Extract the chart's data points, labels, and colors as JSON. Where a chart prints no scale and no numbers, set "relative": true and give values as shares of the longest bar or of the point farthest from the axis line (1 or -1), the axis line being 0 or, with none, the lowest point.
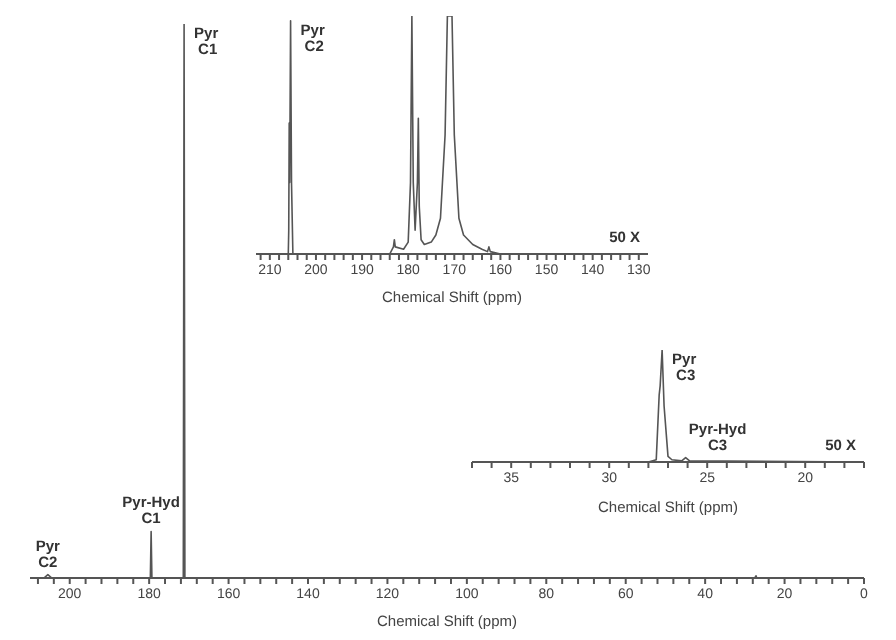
{
  "chart_data": [
    {
      "type": "line",
      "relative": true,
      "xlabel": "Chemical Shift (ppm)",
      "xlim": [
        210,
        0
      ],
      "tick_labels": "x",
      "xticks": [
        {
          "value": 208,
          "label": null
        },
        {
          "value": 204,
          "label": null
        },
        200,
        {
          "value": 196,
          "label": null
        },
        {
          "value": 192,
          "label": null
        },
        {
          "value": 188,
          "label": null
        },
        {
          "value": 184,
          "label": null
        },
        180,
        {
          "value": 176,
          "label": null
        },
        {
          "value": 172,
          "label": null
        },
        {
          "value": 168,
          "label": null
        },
        {
          "value": 164,
          "label": null
        },
        160,
        {
          "value": 156,
          "label": null
        },
        {
          "value": 152,
          "label": null
        },
        {
          "value": 148,
          "label": null
        },
        {
          "value": 144,
          "label": null
        },
        140,
        {
          "value": 136,
          "label": null
        },
        {
          "value": 132,
          "label": null
        },
        {
          "value": 128,
          "label": null
        },
        {
          "value": 124,
          "label": null
        },
        120,
        {
          "value": 116,
          "label": null
        },
        {
          "value": 112,
          "label": null
        },
        {
          "value": 108,
          "label": null
        },
        {
          "value": 104,
          "label": null
        },
        100,
        {
          "value": 96,
          "label": null
        },
        {
          "value": 92,
          "label": null
        },
        {
          "value": 88,
          "label": null
        },
        {
          "value": 84,
          "label": null
        },
        80,
        {
          "value": 76,
          "label": null
        },
        {
          "value": 72,
          "label": null
        },
        {
          "value": 68,
          "label": null
        },
        {
          "value": 64,
          "label": null
        },
        60,
        {
          "value": 56,
          "label": null
        },
        {
          "value": 52,
          "label": null
        },
        {
          "value": 48,
          "label": null
        },
        {
          "value": 44,
          "label": null
        },
        40,
        {
          "value": 36,
          "label": null
        },
        {
          "value": 32,
          "label": null
        },
        {
          "value": 28,
          "label": null
        },
        {
          "value": 24,
          "label": null
        },
        20,
        {
          "value": 16,
          "label": null
        },
        {
          "value": 12,
          "label": null
        },
        {
          "value": 8,
          "label": null
        },
        {
          "value": 4,
          "label": null
        },
        0
      ],
      "x": [
        210,
        207,
        206.5,
        205.5,
        204.5,
        180,
        179.7,
        179.5,
        179.3,
        172,
        171.4,
        171.2,
        171,
        170.6,
        163,
        27.5,
        27.2,
        27,
        0
      ],
      "values": [
        0,
        0,
        0,
        0.006,
        0,
        0,
        0,
        0.084,
        0,
        0,
        0,
        1,
        0,
        0,
        0,
        0,
        0.004,
        0,
        0
      ],
      "color": "#555555",
      "annotations": [
        {
          "text": "Pyr C1",
          "x": 171.2,
          "y": 1
        },
        {
          "text": "Pyr-Hyd C1",
          "x": 179.5,
          "y": 0.084
        },
        {
          "text": "Pyr C2",
          "x": 205.5,
          "y": 0.006
        }
      ]
    },
    {
      "type": "line",
      "relative": true,
      "xlabel": "Chemical Shift (ppm)",
      "xlim": [
        213,
        128
      ],
      "tick_labels": "x",
      "xticks": [
        {
          "value": 212,
          "label": null
        },
        210,
        {
          "value": 208,
          "label": null
        },
        {
          "value": 206,
          "label": null
        },
        {
          "value": 204,
          "label": null
        },
        {
          "value": 202,
          "label": null
        },
        200,
        {
          "value": 198,
          "label": null
        },
        {
          "value": 196,
          "label": null
        },
        {
          "value": 194,
          "label": null
        },
        {
          "value": 192,
          "label": null
        },
        190,
        {
          "value": 188,
          "label": null
        },
        {
          "value": 186,
          "label": null
        },
        {
          "value": 184,
          "label": null
        },
        {
          "value": 182,
          "label": null
        },
        180,
        {
          "value": 178,
          "label": null
        },
        {
          "value": 176,
          "label": null
        },
        {
          "value": 174,
          "label": null
        },
        {
          "value": 172,
          "label": null
        },
        170,
        {
          "value": 168,
          "label": null
        },
        {
          "value": 166,
          "label": null
        },
        {
          "value": 164,
          "label": null
        },
        {
          "value": 162,
          "label": null
        },
        160,
        {
          "value": 158,
          "label": null
        },
        {
          "value": 156,
          "label": null
        },
        {
          "value": 154,
          "label": null
        },
        {
          "value": 152,
          "label": null
        },
        150,
        {
          "value": 148,
          "label": null
        },
        {
          "value": 146,
          "label": null
        },
        {
          "value": 144,
          "label": null
        },
        {
          "value": 142,
          "label": null
        },
        140,
        {
          "value": 138,
          "label": null
        },
        {
          "value": 136,
          "label": null
        },
        {
          "value": 134,
          "label": null
        },
        {
          "value": 132,
          "label": null
        },
        130
      ],
      "x": [
        213,
        207,
        206,
        205.9,
        205.8,
        205.7,
        205.5,
        205.3,
        205,
        184,
        183.2,
        183,
        182.8,
        181,
        180,
        179.5,
        179.2,
        178.9,
        178.5,
        178,
        177.8,
        177.6,
        177.2,
        176.5,
        175,
        174,
        173,
        172,
        171.5,
        171,
        170.5,
        170,
        169,
        168,
        166,
        164,
        162.8,
        162.5,
        162.2,
        160,
        128
      ],
      "values": [
        0,
        0,
        0,
        0.1,
        0.55,
        0.3,
        0.98,
        0.3,
        0,
        0,
        0.03,
        0.06,
        0.03,
        0.02,
        0.05,
        0.3,
        1,
        0.3,
        0.1,
        0.3,
        0.57,
        0.2,
        0.06,
        0.04,
        0.05,
        0.08,
        0.15,
        0.5,
        1,
        1,
        1,
        0.5,
        0.15,
        0.08,
        0.04,
        0.02,
        0.01,
        0.03,
        0.01,
        0,
        0
      ],
      "color": "#555555",
      "annotations": [
        {
          "text": "Pyr C2",
          "x": 205.5,
          "y": 0.98
        },
        "50 X"
      ]
    },
    {
      "type": "line",
      "relative": true,
      "xlabel": "Chemical Shift (ppm)",
      "xlim": [
        37,
        17
      ],
      "tick_labels": "x",
      "xticks": [
        {
          "value": 37,
          "label": null
        },
        {
          "value": 36,
          "label": null
        },
        35,
        {
          "value": 34,
          "label": null
        },
        {
          "value": 33,
          "label": null
        },
        {
          "value": 32,
          "label": null
        },
        {
          "value": 31,
          "label": null
        },
        30,
        {
          "value": 29,
          "label": null
        },
        {
          "value": 28,
          "label": null
        },
        {
          "value": 27,
          "label": null
        },
        {
          "value": 26,
          "label": null
        },
        25,
        {
          "value": 24,
          "label": null
        },
        {
          "value": 23,
          "label": null
        },
        {
          "value": 22,
          "label": null
        },
        {
          "value": 21,
          "label": null
        },
        20,
        {
          "value": 19,
          "label": null
        },
        {
          "value": 18,
          "label": null
        },
        {
          "value": 17,
          "label": null
        }
      ],
      "x": [
        37,
        28,
        27.6,
        27.45,
        27.4,
        27.3,
        27.2,
        27.0,
        26.8,
        26.3,
        26.1,
        25.9,
        17
      ],
      "values": [
        0,
        0,
        0.02,
        0.6,
        0.68,
        1,
        0.5,
        0.05,
        0.02,
        0.01,
        0.04,
        0.01,
        0
      ],
      "color": "#555555",
      "annotations": [
        {
          "text": "Pyr C3",
          "x": 27.3,
          "y": 1
        },
        {
          "text": "Pyr-Hyd C3",
          "x": 26.1,
          "y": 0.04
        },
        "50 X"
      ]
    }
  ]
}
